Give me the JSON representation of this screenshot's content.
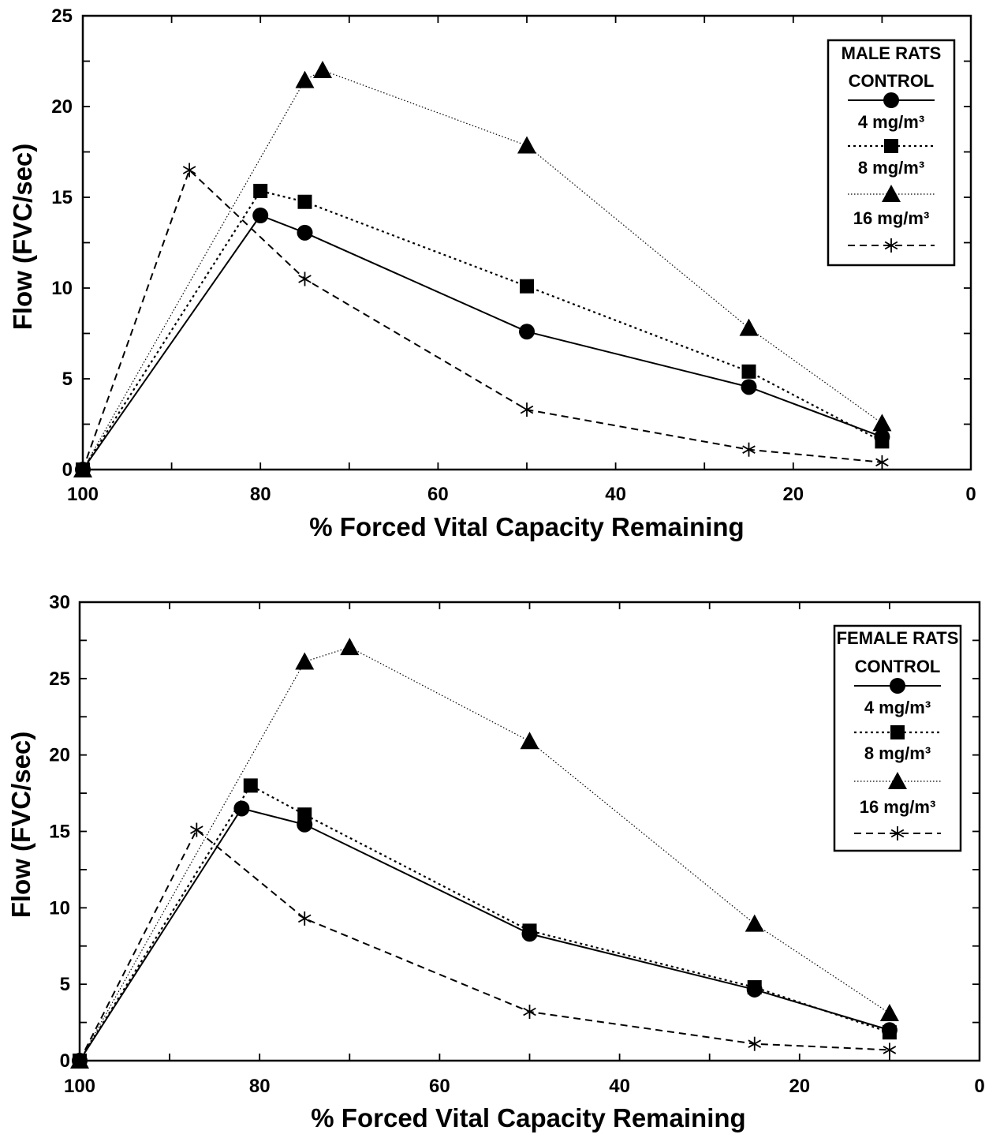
{
  "chart_data": [
    {
      "type": "line",
      "xlabel": "% Forced Vital Capacity Remaining",
      "ylabel": "Flow (FVC/sec)",
      "xlim": [
        100,
        0
      ],
      "ylim": [
        0,
        25
      ],
      "xticks": [
        "100",
        "80",
        "60",
        "40",
        "20",
        "0"
      ],
      "yticks": [
        "0",
        "5",
        "10",
        "15",
        "20",
        "25"
      ],
      "xtick_values": [
        100,
        80,
        60,
        40,
        20,
        0
      ],
      "ytick_values": [
        0,
        5,
        10,
        15,
        20,
        25
      ],
      "grid": false,
      "legend_position": "top-right",
      "legend": {
        "title": "MALE RATS",
        "entries": [
          {
            "label": "CONTROL",
            "marker": "circle",
            "line": "solid"
          },
          {
            "label": "4 mg/m³",
            "marker": "square",
            "line": "dotted"
          },
          {
            "label": "8 mg/m³",
            "marker": "triangle",
            "line": "fine-dotted"
          },
          {
            "label": "16 mg/m³",
            "marker": "asterisk",
            "line": "dashed"
          }
        ]
      },
      "series": [
        {
          "name": "CONTROL",
          "marker": "circle",
          "line": "solid",
          "x": [
            100,
            80,
            75,
            50,
            25,
            10
          ],
          "y": [
            0,
            14,
            13.05,
            7.6,
            4.55,
            1.8
          ]
        },
        {
          "name": "4 mg/m³",
          "marker": "square",
          "line": "dotted",
          "x": [
            100,
            80,
            75,
            50,
            25,
            10
          ],
          "y": [
            0,
            15.35,
            14.75,
            10.1,
            5.4,
            1.55
          ]
        },
        {
          "name": "8 mg/m³",
          "marker": "triangle",
          "line": "fine-dotted",
          "x": [
            100,
            75,
            73,
            50,
            25,
            10
          ],
          "y": [
            0,
            21.45,
            22,
            17.85,
            7.8,
            2.55
          ]
        },
        {
          "name": "16 mg/m³",
          "marker": "asterisk",
          "line": "dashed",
          "x": [
            100,
            88,
            75,
            50,
            25,
            10
          ],
          "y": [
            0,
            16.5,
            10.5,
            3.3,
            1.1,
            0.4
          ]
        }
      ]
    },
    {
      "type": "line",
      "xlabel": "% Forced Vital Capacity Remaining",
      "ylabel": "Flow (FVC/sec)",
      "xlim": [
        100,
        0
      ],
      "ylim": [
        0,
        30
      ],
      "xticks": [
        "100",
        "80",
        "60",
        "40",
        "20",
        "0"
      ],
      "yticks": [
        "0",
        "5",
        "10",
        "15",
        "20",
        "25",
        "30"
      ],
      "xtick_values": [
        100,
        80,
        60,
        40,
        20,
        0
      ],
      "ytick_values": [
        0,
        5,
        10,
        15,
        20,
        25,
        30
      ],
      "grid": false,
      "legend_position": "top-right",
      "legend": {
        "title": "FEMALE RATS",
        "entries": [
          {
            "label": "CONTROL",
            "marker": "circle",
            "line": "solid"
          },
          {
            "label": "4 mg/m³",
            "marker": "square",
            "line": "dotted"
          },
          {
            "label": "8 mg/m³",
            "marker": "triangle",
            "line": "fine-dotted"
          },
          {
            "label": "16 mg/m³",
            "marker": "asterisk",
            "line": "dashed"
          }
        ]
      },
      "series": [
        {
          "name": "CONTROL",
          "marker": "circle",
          "line": "solid",
          "x": [
            100,
            82,
            75,
            50,
            25,
            10
          ],
          "y": [
            0,
            16.5,
            15.45,
            8.3,
            4.65,
            2.0
          ]
        },
        {
          "name": "4 mg/m³",
          "marker": "square",
          "line": "dotted",
          "x": [
            100,
            81,
            75,
            50,
            25,
            10
          ],
          "y": [
            0,
            18,
            16.1,
            8.5,
            4.8,
            1.85
          ]
        },
        {
          "name": "8 mg/m³",
          "marker": "triangle",
          "line": "fine-dotted",
          "x": [
            100,
            75,
            70,
            50,
            25,
            10
          ],
          "y": [
            0,
            26.1,
            27.05,
            20.9,
            8.95,
            3.1
          ]
        },
        {
          "name": "16 mg/m³",
          "marker": "asterisk",
          "line": "dashed",
          "x": [
            100,
            87,
            75,
            50,
            25,
            10
          ],
          "y": [
            0,
            15.1,
            9.3,
            3.2,
            1.1,
            0.7
          ]
        }
      ]
    }
  ]
}
